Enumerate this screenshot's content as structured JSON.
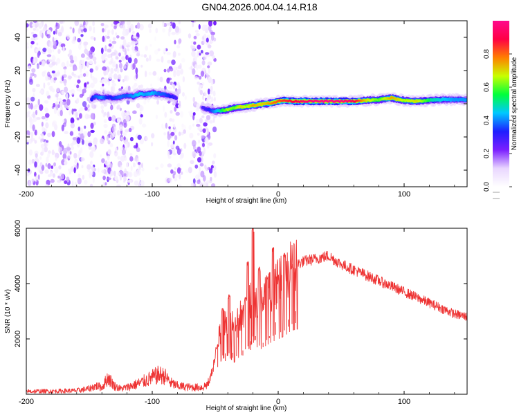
{
  "title": "GN04.2026.004.04.14.R18",
  "chart_data": [
    {
      "type": "heatmap",
      "name": "spectrogram",
      "xlabel": "Height of straight line (km)",
      "ylabel": "Frequency (Hz)",
      "xlim": [
        -200,
        150
      ],
      "ylim": [
        -50,
        50
      ],
      "xticks": [
        {
          "value": -200,
          "label": "-200"
        },
        {
          "value": -100,
          "label": "-100"
        },
        {
          "value": 0,
          "label": "0"
        },
        {
          "value": 100,
          "label": "100"
        }
      ],
      "yticks": [
        {
          "value": -40,
          "label": "-40"
        },
        {
          "value": -20,
          "label": "-20"
        },
        {
          "value": 0,
          "label": "0"
        },
        {
          "value": 20,
          "label": "20"
        },
        {
          "value": 40,
          "label": "40"
        }
      ],
      "colorbar": {
        "label": "Normalized spectral amplitude",
        "range": [
          0,
          1
        ],
        "ticks": [
          {
            "value": 0.0,
            "label": "0.0"
          },
          {
            "value": 0.2,
            "label": "0.2"
          },
          {
            "value": 0.4,
            "label": "0.4"
          },
          {
            "value": 0.6,
            "label": "0.6"
          },
          {
            "value": 0.8,
            "label": "0.8"
          }
        ],
        "colors": [
          "#ffffff",
          "#e9d6ff",
          "#7b1fff",
          "#1e1eff",
          "#00c8ff",
          "#00ff3c",
          "#c8ff00",
          "#ff7f00",
          "#ff0044",
          "#ff0a8c"
        ]
      },
      "noise_region": [
        -200,
        -50
      ],
      "gaps": [
        [
          -145,
          -140
        ],
        [
          -108,
          -90
        ],
        [
          -78,
          -68
        ]
      ],
      "ridge": [
        {
          "x": -148,
          "y": 3.0,
          "amp": 0.35
        },
        {
          "x": -145,
          "y": 4.5,
          "amp": 0.4
        },
        {
          "x": -140,
          "y": 3.5,
          "amp": 0.45
        },
        {
          "x": -135,
          "y": 4.0,
          "amp": 0.35
        },
        {
          "x": -130,
          "y": 3.5,
          "amp": 0.38
        },
        {
          "x": -125,
          "y": 4.0,
          "amp": 0.42
        },
        {
          "x": -120,
          "y": 5.0,
          "amp": 0.4
        },
        {
          "x": -115,
          "y": 4.5,
          "amp": 0.45
        },
        {
          "x": -110,
          "y": 6.0,
          "amp": 0.5
        },
        {
          "x": -105,
          "y": 5.5,
          "amp": 0.45
        },
        {
          "x": -100,
          "y": 6.5,
          "amp": 0.48
        },
        {
          "x": -95,
          "y": 6.0,
          "amp": 0.42
        },
        {
          "x": -90,
          "y": 5.5,
          "amp": 0.4
        },
        {
          "x": -85,
          "y": 4.5,
          "amp": 0.36
        },
        {
          "x": -80,
          "y": 3.5,
          "amp": 0.3
        },
        {
          "x": -60,
          "y": -2.5,
          "amp": 0.3
        },
        {
          "x": -55,
          "y": -3.5,
          "amp": 0.35
        },
        {
          "x": -50,
          "y": -4.5,
          "amp": 0.45
        },
        {
          "x": -45,
          "y": -4.0,
          "amp": 0.55
        },
        {
          "x": -40,
          "y": -3.5,
          "amp": 0.65
        },
        {
          "x": -35,
          "y": -2.5,
          "amp": 0.6
        },
        {
          "x": -30,
          "y": -2.0,
          "amp": 0.7
        },
        {
          "x": -25,
          "y": -1.5,
          "amp": 0.65
        },
        {
          "x": -20,
          "y": -1.0,
          "amp": 0.75
        },
        {
          "x": -15,
          "y": -0.5,
          "amp": 0.7
        },
        {
          "x": -10,
          "y": 0.0,
          "amp": 0.72
        },
        {
          "x": -5,
          "y": 0.5,
          "amp": 0.78
        },
        {
          "x": 0,
          "y": 1.5,
          "amp": 0.82
        },
        {
          "x": 5,
          "y": 2.0,
          "amp": 0.85
        },
        {
          "x": 10,
          "y": 1.5,
          "amp": 0.88
        },
        {
          "x": 15,
          "y": 1.5,
          "amp": 0.9
        },
        {
          "x": 20,
          "y": 1.5,
          "amp": 0.95
        },
        {
          "x": 30,
          "y": 1.5,
          "amp": 0.98
        },
        {
          "x": 40,
          "y": 1.5,
          "amp": 1.0
        },
        {
          "x": 50,
          "y": 1.5,
          "amp": 0.98
        },
        {
          "x": 60,
          "y": 1.5,
          "amp": 0.92
        },
        {
          "x": 70,
          "y": 2.0,
          "amp": 0.7
        },
        {
          "x": 80,
          "y": 2.5,
          "amp": 0.6
        },
        {
          "x": 90,
          "y": 3.5,
          "amp": 0.75
        },
        {
          "x": 100,
          "y": 2.0,
          "amp": 0.65
        },
        {
          "x": 110,
          "y": 1.5,
          "amp": 0.7
        },
        {
          "x": 120,
          "y": 2.0,
          "amp": 0.55
        },
        {
          "x": 130,
          "y": 2.5,
          "amp": 0.5
        },
        {
          "x": 140,
          "y": 2.5,
          "amp": 0.45
        },
        {
          "x": 150,
          "y": 2.5,
          "amp": 0.45
        }
      ]
    },
    {
      "type": "line",
      "name": "snr",
      "xlabel": "Height of straight line (km)",
      "ylabel": "SNR (10 * v/v)",
      "xlim": [
        -200,
        150
      ],
      "ylim": [
        0,
        6000
      ],
      "xticks": [
        {
          "value": -200,
          "label": "-200"
        },
        {
          "value": -100,
          "label": "-100"
        },
        {
          "value": 0,
          "label": "0"
        },
        {
          "value": 100,
          "label": "100"
        }
      ],
      "yticks": [
        {
          "value": 2000,
          "label": "2000"
        },
        {
          "value": 4000,
          "label": "4000"
        },
        {
          "value": 6000,
          "label": "6000"
        }
      ],
      "color": "#ee3333",
      "series": [
        {
          "name": "SNR",
          "x": [
            -200,
            -190,
            -180,
            -170,
            -160,
            -150,
            -145,
            -140,
            -135,
            -130,
            -125,
            -120,
            -110,
            -100,
            -95,
            -90,
            -85,
            -80,
            -70,
            -60,
            -55,
            -50,
            -45,
            -40,
            -35,
            -30,
            -25,
            -20,
            -15,
            -10,
            -5,
            0,
            5,
            10,
            15,
            20,
            30,
            40,
            50,
            60,
            70,
            80,
            90,
            100,
            110,
            120,
            130,
            140,
            150
          ],
          "values": [
            100,
            110,
            110,
            120,
            130,
            200,
            300,
            250,
            600,
            300,
            200,
            250,
            400,
            600,
            700,
            650,
            400,
            300,
            250,
            250,
            400,
            1300,
            2500,
            2800,
            2300,
            2800,
            3000,
            3800,
            3200,
            3500,
            3800,
            4000,
            4200,
            4600,
            4700,
            4800,
            4900,
            5000,
            4700,
            4500,
            4300,
            4100,
            3900,
            3700,
            3500,
            3300,
            3100,
            2900,
            2800
          ],
          "spikes": [
            {
              "x": -48,
              "y": 1800
            },
            {
              "x": -44,
              "y": 3100
            },
            {
              "x": -42,
              "y": 1200
            },
            {
              "x": -39,
              "y": 3600
            },
            {
              "x": -36,
              "y": 1500
            },
            {
              "x": -33,
              "y": 2500
            },
            {
              "x": -28,
              "y": 1400
            },
            {
              "x": -26,
              "y": 3500
            },
            {
              "x": -24,
              "y": 4800
            },
            {
              "x": -22,
              "y": 1600
            },
            {
              "x": -20,
              "y": 6000
            },
            {
              "x": -18,
              "y": 2100
            },
            {
              "x": -15,
              "y": 4600
            },
            {
              "x": -12,
              "y": 1700
            },
            {
              "x": -9,
              "y": 4200
            },
            {
              "x": -7,
              "y": 2100
            },
            {
              "x": -4,
              "y": 5300
            },
            {
              "x": -2,
              "y": 2600
            },
            {
              "x": 2,
              "y": 3500
            },
            {
              "x": 5,
              "y": 5100
            },
            {
              "x": 8,
              "y": 2700
            },
            {
              "x": 11,
              "y": 4700
            },
            {
              "x": 14,
              "y": 3000
            }
          ]
        }
      ]
    }
  ]
}
